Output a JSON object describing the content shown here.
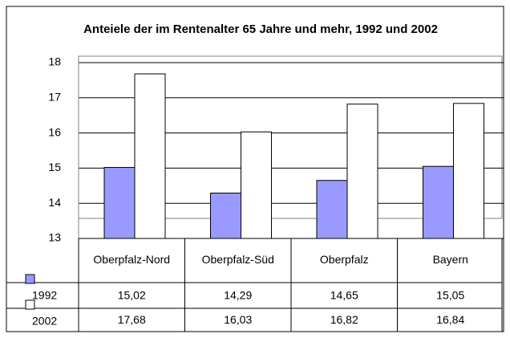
{
  "chart_data": {
    "type": "bar",
    "title": "Anteiele der im Rentenalter 65 Jahre und mehr, 1992 und 2002",
    "categories": [
      "Oberpfalz-Nord",
      "Oberpfalz-Süd",
      "Oberpfalz",
      "Bayern"
    ],
    "series": [
      {
        "name": "1992",
        "color": "#9999ff",
        "values": [
          15.02,
          14.29,
          14.65,
          15.05
        ],
        "value_labels": [
          "15,02",
          "14,29",
          "14,65",
          "15,05"
        ]
      },
      {
        "name": "2002",
        "color": "#ffffff",
        "values": [
          17.68,
          16.03,
          16.82,
          16.84
        ],
        "value_labels": [
          "17,68",
          "16,03",
          "16,82",
          "16,84"
        ]
      }
    ],
    "ylim": [
      13,
      18
    ],
    "yticks": [
      13,
      14,
      15,
      16,
      17,
      18
    ],
    "grid": true
  }
}
